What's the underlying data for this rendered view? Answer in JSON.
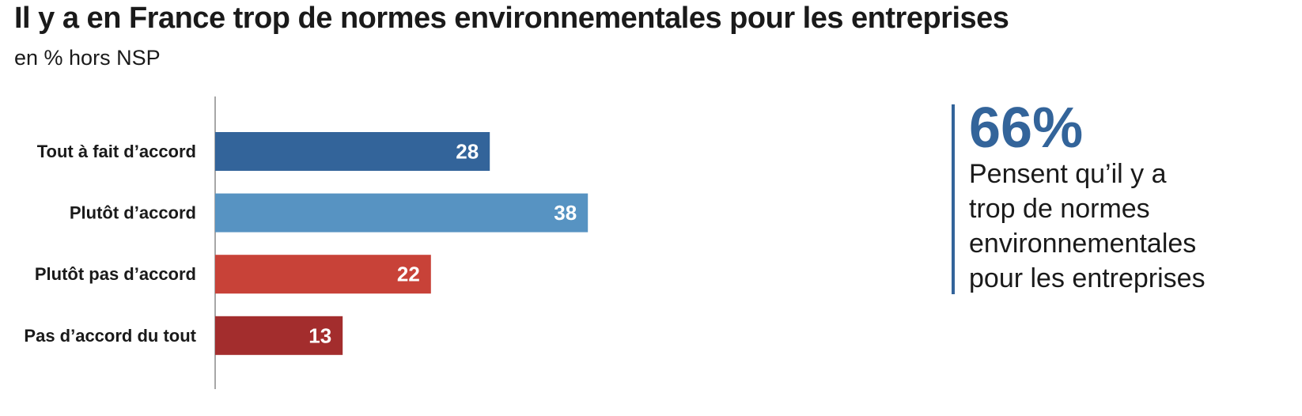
{
  "title": "Il y a en France trop de normes environnementales pour les entreprises",
  "subtitle": "en % hors NSP",
  "chart_data": {
    "type": "bar",
    "orientation": "horizontal",
    "categories": [
      "Tout à fait d’accord",
      "Plutôt d’accord",
      "Plutôt pas d’accord",
      "Pas d’accord du tout"
    ],
    "values": [
      28,
      38,
      22,
      13
    ],
    "colors": [
      "#33649a",
      "#5793c2",
      "#c84238",
      "#a32d2d"
    ],
    "title": "Il y a en France trop de normes environnementales pour les entreprises",
    "subtitle": "en % hors NSP",
    "xlim": [
      0,
      100
    ],
    "grid": false,
    "legend": "none"
  },
  "callout": {
    "value": "66%",
    "lines": [
      "Pensent qu’il y a",
      "trop de normes",
      "environnementales",
      "pour les entreprises"
    ],
    "accent_color": "#33649a"
  }
}
